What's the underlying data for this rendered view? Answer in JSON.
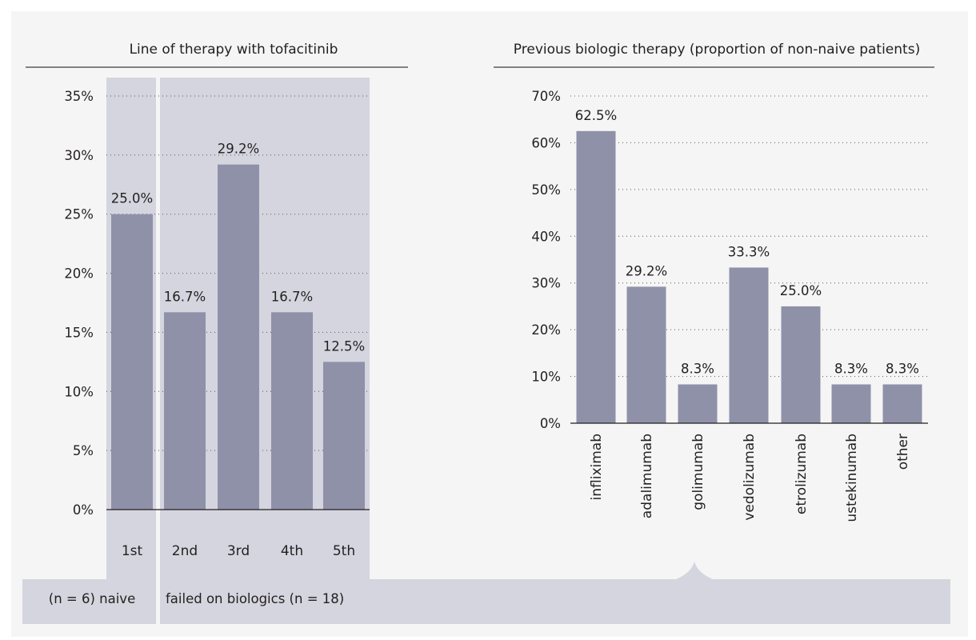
{
  "colors": {
    "page_background": "#f5f5f5",
    "band_background": "#d5d5df",
    "bar_fill": "#8f91a9",
    "text": "#231f20"
  },
  "chart_data": [
    {
      "type": "bar",
      "title": "Line of therapy with tofacitinib",
      "categories": [
        "1st",
        "2nd",
        "3rd",
        "4th",
        "5th"
      ],
      "values": [
        25.0,
        16.7,
        29.2,
        16.7,
        12.5
      ],
      "value_labels": [
        "25.0%",
        "16.7%",
        "29.2%",
        "16.7%",
        "12.5%"
      ],
      "ylim": [
        0,
        35
      ],
      "yticks": [
        0,
        5,
        10,
        15,
        20,
        25,
        30,
        35
      ],
      "ytick_labels": [
        "0%",
        "5%",
        "10%",
        "15%",
        "20%",
        "25%",
        "30%",
        "35%"
      ],
      "grid": "dotted horizontal",
      "groups": [
        {
          "label": "(n = 6) naive",
          "categories": [
            "1st"
          ]
        },
        {
          "label": "failed on biologics (n = 18)",
          "categories": [
            "2nd",
            "3rd",
            "4th",
            "5th"
          ]
        }
      ]
    },
    {
      "type": "bar",
      "title": "Previous biologic therapy (proportion of non-naive patients)",
      "categories": [
        "infliximab",
        "adalimumab",
        "golimumab",
        "vedolizumab",
        "etrolizumab",
        "ustekinumab",
        "other"
      ],
      "values": [
        62.5,
        29.2,
        8.3,
        33.3,
        25.0,
        8.3,
        8.3
      ],
      "value_labels": [
        "62.5%",
        "29.2%",
        "8.3%",
        "33.3%",
        "25.0%",
        "8.3%",
        "8.3%"
      ],
      "ylim": [
        0,
        70
      ],
      "yticks": [
        0,
        10,
        20,
        30,
        40,
        50,
        60,
        70
      ],
      "ytick_labels": [
        "0%",
        "10%",
        "20%",
        "30%",
        "40%",
        "50%",
        "60%",
        "70%"
      ],
      "grid": "dotted horizontal",
      "category_label_rotation": "vertical"
    }
  ]
}
